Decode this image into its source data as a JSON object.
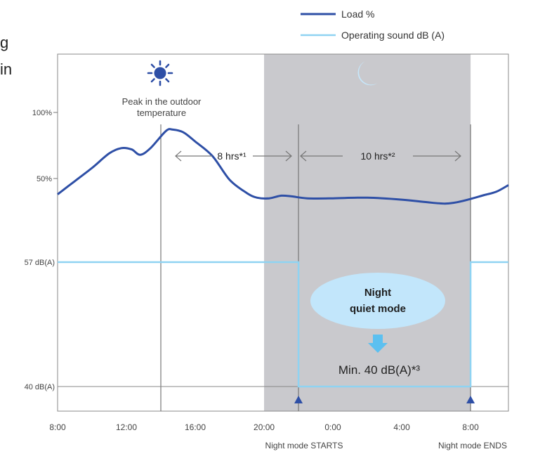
{
  "text_fragments": [
    "g",
    "in"
  ],
  "legend": {
    "load_label": "Load %",
    "sound_label": "Operating sound dB (A)",
    "load_color": "#2e4fa6",
    "sound_color": "#8fd3f2"
  },
  "annotations": {
    "peak_line1": "Peak in the outdoor",
    "peak_line2": "temperature",
    "hrs_8": "8 hrs*¹",
    "hrs_10": "10 hrs*²",
    "night_line1": "Night",
    "night_line2": "quiet mode",
    "min_label": "Min. 40 dB(A)*³",
    "night_starts": "Night mode STARTS",
    "night_ends": "Night mode ENDS"
  },
  "colors": {
    "night_shade": "#c9c9cd",
    "bubble": "#c2e6fb",
    "arrow": "#5cc0f0",
    "marker": "#2e4fa6",
    "sun": "#2e4fa6",
    "moon": "#c6e7fb",
    "grid": "#9a9a9a"
  },
  "chart_data": {
    "type": "line",
    "x_tick_labels": [
      "8:00",
      "12:00",
      "16:00",
      "20:00",
      "0:00",
      "4:00",
      "8:00"
    ],
    "x_tick_hours": [
      8,
      12,
      16,
      20,
      24,
      28,
      32
    ],
    "xlim_hours": [
      8,
      34.2
    ],
    "load_ticks": [
      {
        "value": 100,
        "label": "100%"
      },
      {
        "value": 50,
        "label": "50%"
      }
    ],
    "sound_ticks": [
      {
        "value": 57,
        "label": "57 dB(A)"
      },
      {
        "value": 40,
        "label": "40 dB(A)"
      }
    ],
    "night_band_hours": [
      20,
      32
    ],
    "night_mode_start_hour": 22,
    "night_mode_end_hour": 32,
    "peak_hour": 14,
    "series": [
      {
        "name": "Load %",
        "points": [
          [
            8,
            38
          ],
          [
            9,
            48
          ],
          [
            10,
            58
          ],
          [
            11,
            69
          ],
          [
            11.7,
            73
          ],
          [
            12.3,
            72
          ],
          [
            12.8,
            68
          ],
          [
            13.4,
            73
          ],
          [
            14.3,
            86
          ],
          [
            14.7,
            87
          ],
          [
            15.3,
            85
          ],
          [
            16,
            78
          ],
          [
            17,
            67
          ],
          [
            18,
            49
          ],
          [
            19,
            39
          ],
          [
            19.6,
            35.5
          ],
          [
            20.3,
            35
          ],
          [
            21,
            37
          ],
          [
            21.6,
            36.5
          ],
          [
            22.5,
            35
          ],
          [
            24,
            35
          ],
          [
            26,
            35.5
          ],
          [
            28,
            34
          ],
          [
            29.5,
            32
          ],
          [
            30.5,
            31
          ],
          [
            31.2,
            32
          ],
          [
            32,
            34.5
          ],
          [
            32.8,
            37.5
          ],
          [
            33.5,
            40
          ],
          [
            34.2,
            45
          ]
        ]
      },
      {
        "name": "Operating sound dB (A)",
        "points": [
          [
            8,
            57
          ],
          [
            22,
            57
          ],
          [
            22,
            40
          ],
          [
            32,
            40
          ],
          [
            32,
            57
          ],
          [
            34.2,
            57
          ]
        ]
      }
    ]
  }
}
